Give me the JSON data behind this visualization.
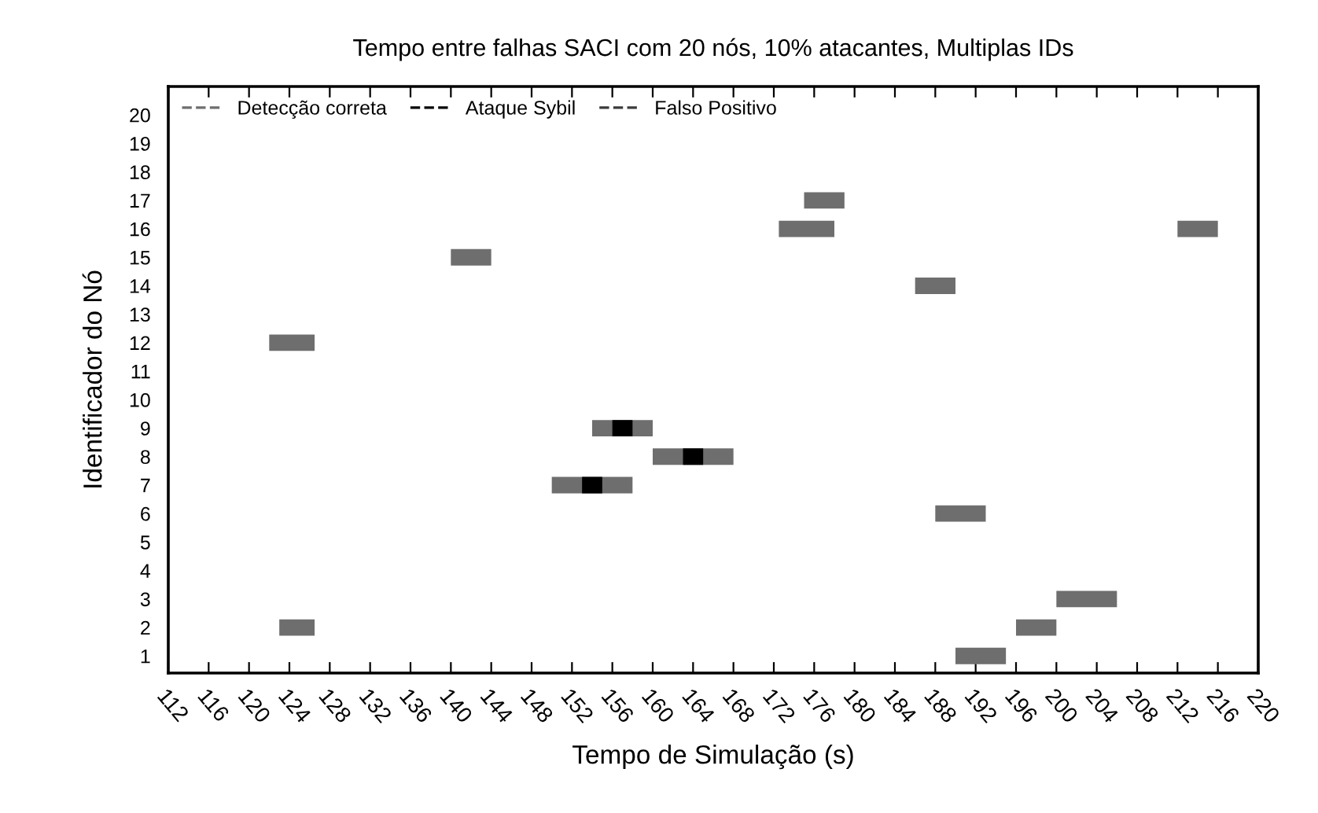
{
  "chart_data": {
    "type": "line",
    "title": "Tempo entre falhas SACI com 20 nós, 10% atacantes, Multiplas IDs",
    "xlabel": "Tempo de Simulação (s)",
    "ylabel": "Identificador do Nó",
    "xlim": [
      112,
      220
    ],
    "xticks": [
      112,
      116,
      120,
      124,
      128,
      132,
      136,
      140,
      144,
      148,
      152,
      156,
      160,
      164,
      168,
      172,
      176,
      180,
      184,
      188,
      192,
      196,
      200,
      204,
      208,
      212,
      216,
      220
    ],
    "ylim": [
      0.4,
      21
    ],
    "yticks": [
      1,
      2,
      3,
      4,
      5,
      6,
      7,
      8,
      9,
      10,
      11,
      12,
      13,
      14,
      15,
      16,
      17,
      18,
      19,
      20
    ],
    "grid": false,
    "legend": "top left",
    "line_style": "solid",
    "marker": "none",
    "series": [
      {
        "name": "Detecção correta",
        "color": "#6e6e6e",
        "x": [
          140,
          144,
          null,
          122,
          126.5,
          null,
          154,
          160,
          null,
          160,
          168,
          null,
          150,
          158,
          null,
          123,
          126.5,
          null,
          175,
          179,
          null,
          172.5,
          178,
          null,
          212,
          216,
          null,
          186,
          190,
          null,
          188,
          193,
          null,
          200,
          206,
          null,
          196,
          200,
          null,
          190,
          195
        ],
        "values": [
          15,
          15,
          null,
          12,
          12,
          null,
          9,
          9,
          null,
          8,
          8,
          null,
          7,
          7,
          null,
          2,
          2,
          null,
          17,
          17,
          null,
          16,
          16,
          null,
          16,
          16,
          null,
          14,
          14,
          null,
          6,
          6,
          null,
          3,
          3,
          null,
          2,
          2,
          null,
          1,
          1
        ]
      },
      {
        "name": "Ataque Sybil",
        "color": "#000000",
        "x": [
          156,
          158,
          null,
          163,
          165,
          null,
          153,
          155
        ],
        "values": [
          9,
          9,
          null,
          8,
          8,
          null,
          7,
          7
        ]
      },
      {
        "name": "Falso Positivo",
        "color": "#3a3a3a"
      }
    ]
  }
}
